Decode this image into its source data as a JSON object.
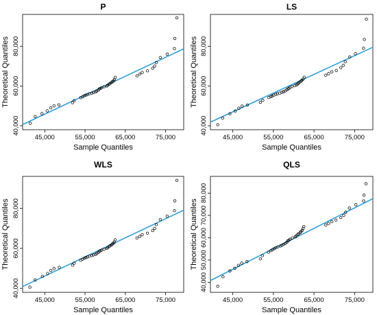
{
  "chart_data": [
    {
      "type": "scatter",
      "title": "P",
      "xlabel": "Sample Quantiles",
      "ylabel": "Theoretical Quantiles",
      "xlim": [
        39500,
        79500
      ],
      "ylim": [
        38000,
        96000
      ],
      "xticks": [
        45000,
        55000,
        65000,
        75000
      ],
      "yticks": [
        40000,
        60000,
        80000
      ],
      "xtick_labels": [
        "45,000",
        "55,000",
        "65,000",
        "75,000"
      ],
      "ytick_labels": [
        "40,000",
        "60,000",
        "80,000"
      ],
      "grid": false,
      "line": {
        "x": [
          39500,
          79500
        ],
        "y": [
          40600,
          78700
        ],
        "color": "#2e9fd8"
      },
      "points": {
        "color": "#000000",
        "x": [
          41400,
          42600,
          44300,
          45600,
          46500,
          47300,
          48500,
          51900,
          52300,
          53900,
          54400,
          54800,
          55200,
          55600,
          56100,
          56700,
          57100,
          57600,
          57900,
          58300,
          58500,
          58800,
          59100,
          59700,
          60400,
          60600,
          61000,
          61200,
          61600,
          61800,
          62100,
          62300,
          62500,
          67900,
          68600,
          69200,
          70500,
          71800,
          72300,
          72700,
          73700,
          75400,
          77200,
          77300,
          77800
        ],
        "y": [
          41200,
          44600,
          46100,
          47500,
          49000,
          50000,
          50500,
          51600,
          52600,
          54100,
          54600,
          55100,
          55400,
          55700,
          56100,
          56400,
          56700,
          57000,
          57400,
          57900,
          58500,
          58800,
          59100,
          59600,
          60000,
          60400,
          60900,
          61300,
          61800,
          62200,
          62600,
          63200,
          64300,
          65100,
          66000,
          66800,
          67600,
          68900,
          70000,
          71800,
          74300,
          76000,
          78800,
          83900,
          94300
        ]
      }
    },
    {
      "type": "scatter",
      "title": "LS",
      "xlabel": "Sample Quantiles",
      "ylabel": "Theoretical Quantiles",
      "xlim": [
        39500,
        79500
      ],
      "ylim": [
        38000,
        96000
      ],
      "xticks": [
        45000,
        55000,
        65000,
        75000
      ],
      "yticks": [
        40000,
        60000,
        80000
      ],
      "xtick_labels": [
        "45,000",
        "55,000",
        "65,000",
        "75,000"
      ],
      "ytick_labels": [
        "40,000",
        "60,000",
        "80,000"
      ],
      "grid": false,
      "line": {
        "x": [
          39500,
          79500
        ],
        "y": [
          41800,
          79500
        ],
        "color": "#2e9fd8"
      },
      "points": {
        "color": "#000000",
        "x": [
          41300,
          42500,
          44300,
          45600,
          46500,
          47300,
          48600,
          51800,
          52400,
          53900,
          54400,
          54700,
          55100,
          55600,
          56000,
          56600,
          57100,
          57500,
          57900,
          58300,
          58600,
          58800,
          59100,
          59600,
          60300,
          60700,
          61000,
          61200,
          61500,
          61800,
          62000,
          62300,
          62600,
          67900,
          68600,
          69400,
          70500,
          71600,
          72200,
          72700,
          73800,
          75200,
          77200,
          77400,
          77900
        ],
        "y": [
          40500,
          43800,
          46000,
          47400,
          48800,
          49900,
          50400,
          51800,
          52800,
          54200,
          54600,
          55000,
          55400,
          55800,
          56100,
          56400,
          56800,
          57100,
          57500,
          58100,
          58500,
          58800,
          59200,
          59700,
          60200,
          60600,
          61000,
          61500,
          62000,
          62400,
          62800,
          63400,
          64400,
          65400,
          66200,
          67100,
          67800,
          69200,
          70400,
          72200,
          74600,
          76200,
          79000,
          83400,
          93600
        ]
      }
    },
    {
      "type": "scatter",
      "title": "WLS",
      "xlabel": "Sample Quantiles",
      "ylabel": "Theoretical Quantiles",
      "xlim": [
        39500,
        79500
      ],
      "ylim": [
        38000,
        96000
      ],
      "xticks": [
        45000,
        55000,
        65000,
        75000
      ],
      "yticks": [
        40000,
        60000,
        80000
      ],
      "xtick_labels": [
        "45,000",
        "55,000",
        "65,000",
        "75,000"
      ],
      "ytick_labels": [
        "40,000",
        "60,000",
        "80,000"
      ],
      "grid": false,
      "line": {
        "x": [
          39500,
          79500
        ],
        "y": [
          40900,
          79100
        ],
        "color": "#2e9fd8"
      },
      "points": {
        "color": "#000000",
        "x": [
          41300,
          42600,
          44400,
          45700,
          46500,
          47300,
          48600,
          51900,
          52300,
          53900,
          54400,
          54800,
          55200,
          55600,
          56100,
          56700,
          57100,
          57600,
          57900,
          58300,
          58500,
          58800,
          59100,
          59700,
          60400,
          60600,
          61000,
          61200,
          61600,
          61800,
          62100,
          62300,
          62500,
          67900,
          68600,
          69200,
          70500,
          71800,
          72300,
          72700,
          73700,
          75400,
          77200,
          77300,
          77800
        ],
        "y": [
          40600,
          44200,
          46000,
          47400,
          48900,
          49900,
          50500,
          51600,
          52600,
          54100,
          54600,
          55100,
          55400,
          55700,
          56100,
          56400,
          56700,
          57000,
          57400,
          57900,
          58500,
          58800,
          59100,
          59600,
          60000,
          60400,
          60900,
          61300,
          61800,
          62200,
          62600,
          63200,
          64300,
          65200,
          66000,
          66800,
          67600,
          68900,
          70000,
          71900,
          74400,
          76100,
          78800,
          83800,
          94000
        ]
      }
    },
    {
      "type": "scatter",
      "title": "QLS",
      "xlabel": "Sample Quantiles",
      "ylabel": "Theoretical Quantiles",
      "xlim": [
        39500,
        79500
      ],
      "ylim": [
        35500,
        87500
      ],
      "xticks": [
        45000,
        55000,
        65000,
        75000
      ],
      "yticks": [
        40000,
        50000,
        60000,
        70000,
        80000
      ],
      "xtick_labels": [
        "45,000",
        "55,000",
        "65,000",
        "75,000"
      ],
      "ytick_labels": [
        "40,000",
        "50,000",
        "60,000",
        "70,000",
        "80,000"
      ],
      "grid": false,
      "line": {
        "x": [
          39500,
          79500
        ],
        "y": [
          40800,
          77500
        ],
        "color": "#2e9fd8"
      },
      "points": {
        "color": "#000000",
        "x": [
          41300,
          42600,
          44300,
          45500,
          46400,
          47200,
          48500,
          51800,
          52300,
          53800,
          54400,
          54800,
          55200,
          55600,
          56100,
          56700,
          57100,
          57500,
          57900,
          58300,
          58500,
          58800,
          59100,
          59700,
          60400,
          60600,
          61000,
          61200,
          61600,
          61800,
          62100,
          62300,
          62500,
          67900,
          68600,
          69400,
          70400,
          71600,
          72300,
          72800,
          73700,
          75300,
          77200,
          77300,
          77800
        ],
        "y": [
          38200,
          42500,
          45100,
          46300,
          47600,
          48600,
          49300,
          50500,
          52000,
          53500,
          54200,
          54700,
          55100,
          55500,
          55900,
          56300,
          56600,
          57000,
          57400,
          57900,
          58500,
          58900,
          59300,
          59900,
          60400,
          60800,
          61400,
          61800,
          62300,
          62800,
          63300,
          64100,
          65000,
          65700,
          66400,
          67200,
          67900,
          69000,
          70000,
          71400,
          73300,
          74800,
          76500,
          79100,
          84200
        ]
      }
    }
  ]
}
